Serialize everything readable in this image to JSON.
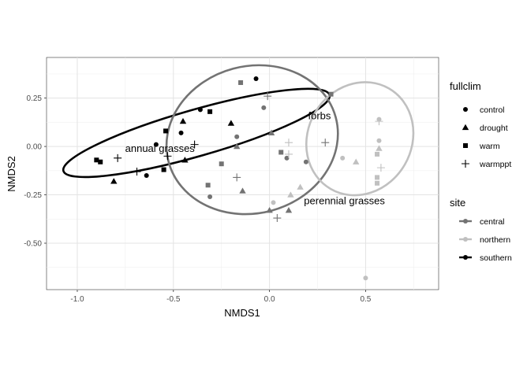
{
  "chart_data": {
    "type": "scatter",
    "xlabel": "NMDS1",
    "ylabel": "NMDS2",
    "xlim": [
      -1.16,
      0.88
    ],
    "ylim": [
      -0.74,
      0.46
    ],
    "x_ticks": [
      -1.0,
      -0.5,
      0.0,
      0.5
    ],
    "x_tick_labels": [
      "-1.0",
      "-0.5",
      "0.0",
      "0.5"
    ],
    "y_ticks": [
      -0.5,
      -0.25,
      0.0,
      0.25
    ],
    "y_tick_labels": [
      "-0.50",
      "-0.25",
      "0.00",
      "0.25"
    ],
    "grid": true,
    "legend_position": "right",
    "legends": [
      {
        "title": "fullclim",
        "items": [
          {
            "label": "control",
            "shape": "circle"
          },
          {
            "label": "drought",
            "shape": "triangle"
          },
          {
            "label": "warm",
            "shape": "square"
          },
          {
            "label": "warmppt",
            "shape": "plus"
          }
        ]
      },
      {
        "title": "site",
        "items": [
          {
            "label": "central",
            "color": "#737373"
          },
          {
            "label": "northern",
            "color": "#c0c0c0"
          },
          {
            "label": "southern",
            "color": "#000000"
          }
        ]
      }
    ],
    "annotations": [
      {
        "text": "annual grasses",
        "x": -0.57,
        "y": -0.01
      },
      {
        "text": "forbs",
        "x": 0.26,
        "y": 0.16
      },
      {
        "text": "perennial grasses",
        "x": 0.39,
        "y": -0.28
      }
    ],
    "ellipses": [
      {
        "site": "southern",
        "cx": -0.38,
        "cy": 0.07,
        "rx": 0.72,
        "ry": 0.12,
        "angle_deg": 16
      },
      {
        "site": "central",
        "cx": -0.09,
        "cy": 0.035,
        "rx": 0.45,
        "ry": 0.38,
        "angle_deg": 15
      },
      {
        "site": "northern",
        "cx": 0.47,
        "cy": 0.04,
        "rx": 0.27,
        "ry": 0.3,
        "angle_deg": -30
      }
    ],
    "series": [
      {
        "site": "southern",
        "color": "#000000",
        "points": [
          {
            "x": -0.07,
            "y": 0.35,
            "shape": "circle"
          },
          {
            "x": -0.36,
            "y": 0.19,
            "shape": "circle"
          },
          {
            "x": -0.46,
            "y": 0.07,
            "shape": "circle"
          },
          {
            "x": -0.59,
            "y": 0.01,
            "shape": "circle"
          },
          {
            "x": -0.64,
            "y": -0.15,
            "shape": "circle"
          },
          {
            "x": -0.45,
            "y": 0.13,
            "shape": "triangle"
          },
          {
            "x": -0.44,
            "y": -0.07,
            "shape": "triangle"
          },
          {
            "x": -0.2,
            "y": 0.12,
            "shape": "triangle"
          },
          {
            "x": -0.81,
            "y": -0.18,
            "shape": "triangle"
          },
          {
            "x": -0.54,
            "y": 0.08,
            "shape": "square"
          },
          {
            "x": -0.31,
            "y": 0.18,
            "shape": "square"
          },
          {
            "x": -0.55,
            "y": -0.12,
            "shape": "square"
          },
          {
            "x": -0.9,
            "y": -0.07,
            "shape": "square"
          },
          {
            "x": -0.88,
            "y": -0.08,
            "shape": "square"
          },
          {
            "x": -0.79,
            "y": -0.06,
            "shape": "plus"
          },
          {
            "x": -0.69,
            "y": -0.13,
            "shape": "plus"
          },
          {
            "x": -0.53,
            "y": -0.05,
            "shape": "plus"
          },
          {
            "x": -0.39,
            "y": 0.01,
            "shape": "plus"
          }
        ]
      },
      {
        "site": "central",
        "color": "#737373",
        "points": [
          {
            "x": -0.03,
            "y": 0.2,
            "shape": "circle"
          },
          {
            "x": -0.17,
            "y": 0.05,
            "shape": "circle"
          },
          {
            "x": 0.19,
            "y": -0.08,
            "shape": "circle"
          },
          {
            "x": 0.09,
            "y": -0.06,
            "shape": "circle"
          },
          {
            "x": -0.31,
            "y": -0.26,
            "shape": "circle"
          },
          {
            "x": 0.01,
            "y": 0.07,
            "shape": "triangle"
          },
          {
            "x": -0.17,
            "y": 0.0,
            "shape": "triangle"
          },
          {
            "x": -0.14,
            "y": -0.23,
            "shape": "triangle"
          },
          {
            "x": 0.0,
            "y": -0.33,
            "shape": "triangle"
          },
          {
            "x": 0.1,
            "y": -0.33,
            "shape": "triangle"
          },
          {
            "x": -0.15,
            "y": 0.33,
            "shape": "square"
          },
          {
            "x": 0.32,
            "y": 0.27,
            "shape": "square"
          },
          {
            "x": 0.06,
            "y": -0.03,
            "shape": "square"
          },
          {
            "x": -0.25,
            "y": -0.09,
            "shape": "square"
          },
          {
            "x": -0.32,
            "y": -0.2,
            "shape": "square"
          },
          {
            "x": -0.01,
            "y": 0.26,
            "shape": "plus"
          },
          {
            "x": 0.29,
            "y": 0.02,
            "shape": "plus"
          },
          {
            "x": -0.17,
            "y": -0.16,
            "shape": "plus"
          },
          {
            "x": 0.04,
            "y": -0.37,
            "shape": "plus"
          }
        ]
      },
      {
        "site": "northern",
        "color": "#c0c0c0",
        "points": [
          {
            "x": 0.57,
            "y": 0.14,
            "shape": "circle"
          },
          {
            "x": 0.57,
            "y": 0.03,
            "shape": "circle"
          },
          {
            "x": 0.38,
            "y": -0.06,
            "shape": "circle"
          },
          {
            "x": 0.02,
            "y": -0.29,
            "shape": "circle"
          },
          {
            "x": 0.5,
            "y": -0.68,
            "shape": "circle"
          },
          {
            "x": 0.57,
            "y": -0.01,
            "shape": "triangle"
          },
          {
            "x": 0.45,
            "y": -0.08,
            "shape": "triangle"
          },
          {
            "x": 0.16,
            "y": -0.21,
            "shape": "triangle"
          },
          {
            "x": 0.11,
            "y": -0.25,
            "shape": "triangle"
          },
          {
            "x": 0.56,
            "y": -0.04,
            "shape": "square"
          },
          {
            "x": 0.56,
            "y": -0.16,
            "shape": "square"
          },
          {
            "x": 0.56,
            "y": -0.19,
            "shape": "square"
          },
          {
            "x": 0.1,
            "y": 0.02,
            "shape": "plus"
          },
          {
            "x": 0.57,
            "y": 0.13,
            "shape": "plus"
          },
          {
            "x": 0.58,
            "y": -0.11,
            "shape": "plus"
          },
          {
            "x": 0.1,
            "y": -0.04,
            "shape": "plus"
          }
        ]
      }
    ]
  }
}
